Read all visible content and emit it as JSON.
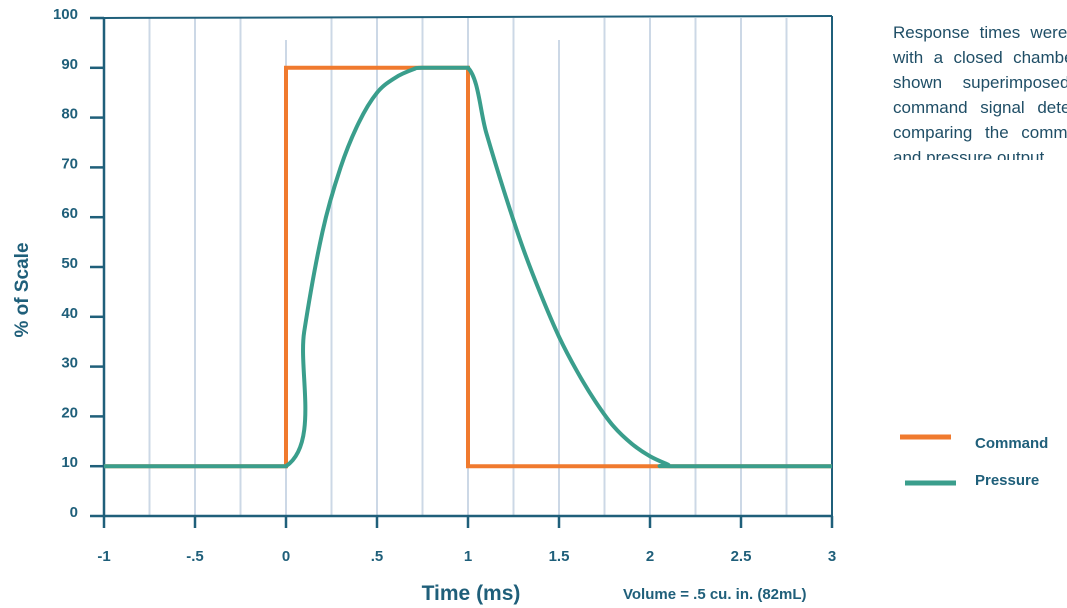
{
  "chart_data": {
    "type": "line",
    "xlabel": "Time (ms)",
    "ylabel": "% of Scale",
    "note": "Volume = .5 cu. in. (82mL)",
    "xlim": [
      -1,
      3
    ],
    "ylim": [
      0,
      100
    ],
    "x_ticks": [
      -1,
      -0.5,
      0,
      0.5,
      1,
      1.5,
      2,
      2.5,
      3
    ],
    "x_tick_labels": [
      "-1",
      "-.5",
      "0",
      ".5",
      "1",
      "1.5",
      "2",
      "2.5",
      "3"
    ],
    "y_ticks": [
      0,
      10,
      20,
      30,
      40,
      50,
      60,
      70,
      80,
      90,
      100
    ],
    "y_tick_labels": [
      "0",
      "10",
      "20",
      "30",
      "40",
      "50",
      "60",
      "70",
      "80",
      "90",
      "100"
    ],
    "grid": "vertical",
    "legend_position": "bottom-right",
    "series": [
      {
        "name": "Command",
        "color": "#f07a2e",
        "x": [
          -1,
          0,
          0,
          1,
          1,
          3
        ],
        "y": [
          10,
          10,
          90,
          90,
          10,
          10
        ]
      },
      {
        "name": "Pressure",
        "color": "#3a9e8c",
        "x": [
          -1,
          0,
          0.1,
          0.2,
          0.3,
          0.4,
          0.5,
          0.6,
          0.7,
          0.75,
          1,
          1.1,
          1.2,
          1.3,
          1.4,
          1.5,
          1.6,
          1.7,
          1.8,
          1.9,
          2,
          2.1,
          2.12,
          3
        ],
        "y": [
          10,
          10,
          37,
          57,
          70,
          79,
          85,
          88,
          89.7,
          90,
          90,
          77,
          65,
          54,
          44.5,
          36,
          29,
          23,
          18,
          14.5,
          12,
          10.3,
          10,
          10
        ]
      }
    ]
  },
  "description": "Response times were measured with a closed chamber and are shown superimposed on the command signal determined by comparing the command signal and pressure output."
}
